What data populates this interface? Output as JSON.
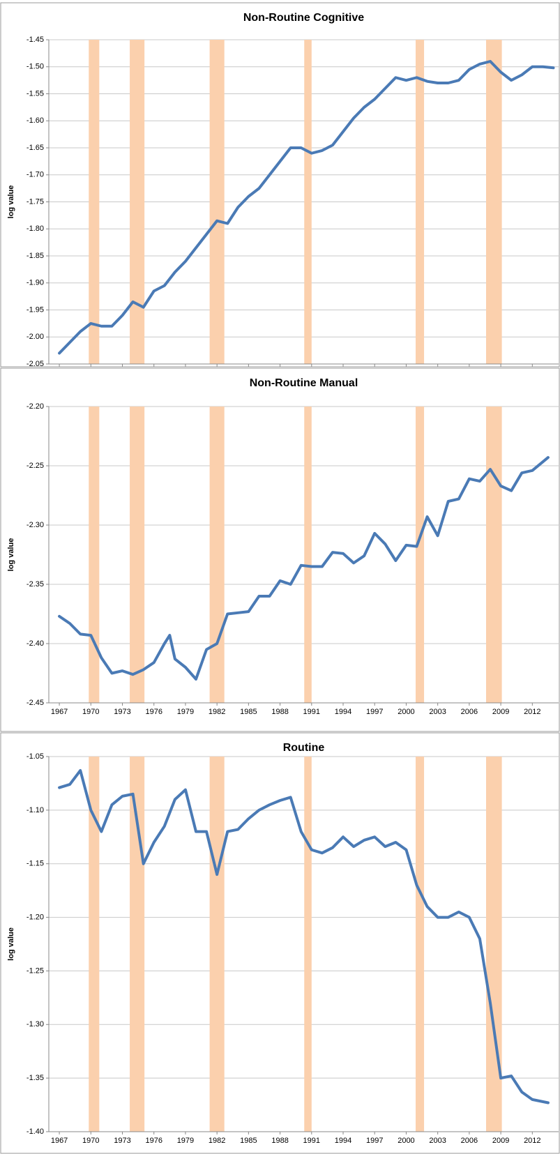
{
  "chart_data": [
    {
      "type": "line",
      "title": "Non-Routine Cognitive",
      "y_label": "log value",
      "x": [
        1967,
        1968,
        1969,
        1970,
        1971,
        1972,
        1973,
        1974,
        1975,
        1976,
        1977,
        1978,
        1979,
        1980,
        1981,
        1982,
        1983,
        1984,
        1985,
        1986,
        1987,
        1988,
        1989,
        1990,
        1991,
        1992,
        1993,
        1994,
        1995,
        1996,
        1997,
        1998,
        1999,
        2000,
        2001,
        2002,
        2003,
        2004,
        2005,
        2006,
        2007,
        2008,
        2009,
        2010,
        2011,
        2012,
        2013,
        2014
      ],
      "series": [
        {
          "color": "#4a7ab5",
          "values": [
            -2.03,
            -2.01,
            -1.99,
            -1.975,
            -1.98,
            -1.98,
            -1.96,
            -1.935,
            -1.945,
            -1.915,
            -1.905,
            -1.88,
            -1.86,
            -1.835,
            -1.81,
            -1.785,
            -1.79,
            -1.76,
            -1.74,
            -1.725,
            -1.7,
            -1.675,
            -1.65,
            -1.65,
            -1.66,
            -1.655,
            -1.645,
            -1.62,
            -1.595,
            -1.575,
            -1.56,
            -1.54,
            -1.52,
            -1.525,
            -1.52,
            -1.527,
            -1.53,
            -1.53,
            -1.525,
            -1.505,
            -1.495,
            -1.49,
            -1.51,
            -1.525,
            -1.515,
            -1.5,
            -1.5,
            -1.502
          ]
        }
      ],
      "xlim": [
        1966,
        2014.5
      ],
      "ylim": [
        -2.05,
        -1.45
      ],
      "xticks": [
        1967,
        1970,
        1973,
        1976,
        1979,
        1982,
        1985,
        1988,
        1991,
        1994,
        1997,
        2000,
        2003,
        2006,
        2009,
        2012
      ],
      "yticks": [
        {
          "value": -2.05,
          "label": "-2.05"
        },
        {
          "value": -2.0,
          "label": "-2.00"
        },
        {
          "value": -1.95,
          "label": "-1.95"
        },
        {
          "value": -1.9,
          "label": "-1.90"
        },
        {
          "value": -1.85,
          "label": "-1.85"
        },
        {
          "value": -1.8,
          "label": "-1.80"
        },
        {
          "value": -1.75,
          "label": "-1.75"
        },
        {
          "value": -1.7,
          "label": "-1.70"
        },
        {
          "value": -1.65,
          "label": "-1.65"
        },
        {
          "value": -1.6,
          "label": "-1.60"
        },
        {
          "value": -1.55,
          "label": "-1.55"
        },
        {
          "value": -1.5,
          "label": "-1.50"
        },
        {
          "value": -1.45,
          "label": "-1.45"
        }
      ],
      "shaded_ranges": [
        [
          1969.8,
          1970.8
        ],
        [
          1973.7,
          1975.1
        ],
        [
          1981.3,
          1982.7
        ],
        [
          1990.3,
          1991.0
        ],
        [
          2000.9,
          2001.7
        ],
        [
          2007.6,
          2009.1
        ]
      ],
      "shade_color": "#fbd0ad",
      "grid": true
    },
    {
      "type": "line",
      "title": "Non-Routine Manual",
      "y_label": "log value",
      "x": [
        1967,
        1968,
        1969,
        1970,
        1971,
        1972,
        1973,
        1974,
        1975,
        1976,
        1977,
        1977.5,
        1978,
        1979,
        1980,
        1981,
        1982,
        1983,
        1984,
        1985,
        1986,
        1987,
        1988,
        1989,
        1990,
        1991,
        1992,
        1993,
        1994,
        1995,
        1996,
        1997,
        1998,
        1999,
        2000,
        2001,
        2002,
        2003,
        2004,
        2005,
        2006,
        2007,
        2008,
        2009,
        2010,
        2011,
        2012,
        2013.5
      ],
      "series": [
        {
          "color": "#4a7ab5",
          "values": [
            -2.377,
            -2.383,
            -2.392,
            -2.393,
            -2.412,
            -2.425,
            -2.423,
            -2.426,
            -2.422,
            -2.416,
            -2.4,
            -2.393,
            -2.413,
            -2.42,
            -2.43,
            -2.405,
            -2.4,
            -2.375,
            -2.374,
            -2.373,
            -2.36,
            -2.36,
            -2.347,
            -2.35,
            -2.334,
            -2.335,
            -2.335,
            -2.323,
            -2.324,
            -2.332,
            -2.326,
            -2.307,
            -2.316,
            -2.33,
            -2.317,
            -2.318,
            -2.293,
            -2.309,
            -2.28,
            -2.278,
            -2.261,
            -2.263,
            -2.253,
            -2.267,
            -2.271,
            -2.256,
            -2.254,
            -2.243
          ]
        }
      ],
      "xlim": [
        1966,
        2014.5
      ],
      "ylim": [
        -2.45,
        -2.2
      ],
      "xticks": [
        1967,
        1970,
        1973,
        1976,
        1979,
        1982,
        1985,
        1988,
        1991,
        1994,
        1997,
        2000,
        2003,
        2006,
        2009,
        2012
      ],
      "yticks": [
        {
          "value": -2.45,
          "label": "-2.45"
        },
        {
          "value": -2.4,
          "label": "-2.40"
        },
        {
          "value": -2.35,
          "label": "-2.35"
        },
        {
          "value": -2.3,
          "label": "-2.30"
        },
        {
          "value": -2.25,
          "label": "-2.25"
        },
        {
          "value": -2.2,
          "label": "-2.20"
        }
      ],
      "shaded_ranges": [
        [
          1969.8,
          1970.8
        ],
        [
          1973.7,
          1975.1
        ],
        [
          1981.3,
          1982.7
        ],
        [
          1990.3,
          1991.0
        ],
        [
          2000.9,
          2001.7
        ],
        [
          2007.6,
          2009.1
        ]
      ],
      "shade_color": "#fbd0ad",
      "grid": true
    },
    {
      "type": "line",
      "title": "Routine",
      "y_label": "log value",
      "x": [
        1967,
        1968,
        1969,
        1970,
        1971,
        1972,
        1973,
        1974,
        1975,
        1976,
        1977,
        1978,
        1979,
        1980,
        1981,
        1982,
        1983,
        1984,
        1985,
        1986,
        1987,
        1988,
        1989,
        1990,
        1991,
        1992,
        1993,
        1994,
        1995,
        1996,
        1997,
        1998,
        1999,
        2000,
        2001,
        2002,
        2003,
        2004,
        2005,
        2006,
        2007,
        2008,
        2009,
        2010,
        2011,
        2012,
        2013.5
      ],
      "series": [
        {
          "color": "#4a7ab5",
          "values": [
            -1.079,
            -1.076,
            -1.063,
            -1.1,
            -1.12,
            -1.095,
            -1.087,
            -1.085,
            -1.15,
            -1.13,
            -1.115,
            -1.09,
            -1.081,
            -1.12,
            -1.12,
            -1.16,
            -1.12,
            -1.118,
            -1.108,
            -1.1,
            -1.095,
            -1.091,
            -1.088,
            -1.12,
            -1.137,
            -1.14,
            -1.135,
            -1.125,
            -1.134,
            -1.128,
            -1.125,
            -1.134,
            -1.13,
            -1.137,
            -1.17,
            -1.19,
            -1.2,
            -1.2,
            -1.195,
            -1.2,
            -1.22,
            -1.28,
            -1.35,
            -1.348,
            -1.363,
            -1.37,
            -1.373
          ]
        }
      ],
      "xlim": [
        1966,
        2014.5
      ],
      "ylim": [
        -1.4,
        -1.05
      ],
      "xticks": [
        1967,
        1970,
        1973,
        1976,
        1979,
        1982,
        1985,
        1988,
        1991,
        1994,
        1997,
        2000,
        2003,
        2006,
        2009,
        2012
      ],
      "yticks": [
        {
          "value": -1.4,
          "label": "-1.40"
        },
        {
          "value": -1.35,
          "label": "-1.35"
        },
        {
          "value": -1.3,
          "label": "-1.30"
        },
        {
          "value": -1.25,
          "label": "-1.25"
        },
        {
          "value": -1.2,
          "label": "-1.20"
        },
        {
          "value": -1.15,
          "label": "-1.15"
        },
        {
          "value": -1.1,
          "label": "-1.10"
        },
        {
          "value": -1.05,
          "label": "-1.05"
        }
      ],
      "shaded_ranges": [
        [
          1969.8,
          1970.8
        ],
        [
          1973.7,
          1975.1
        ],
        [
          1981.3,
          1982.7
        ],
        [
          1990.3,
          1991.0
        ],
        [
          2000.9,
          2001.7
        ],
        [
          2007.6,
          2009.1
        ]
      ],
      "shade_color": "#fbd0ad",
      "grid": true
    }
  ]
}
